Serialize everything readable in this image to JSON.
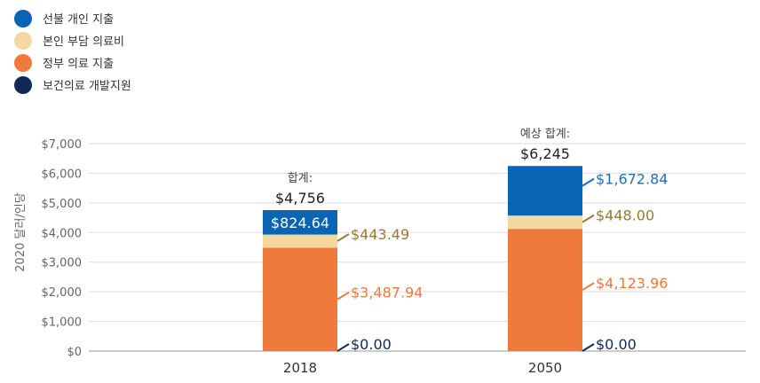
{
  "legend": [
    {
      "label": "선불 개인 지출",
      "color": "#0a64b4"
    },
    {
      "label": "본인 부담 의료비",
      "color": "#f4d8a2"
    },
    {
      "label": "정부 의료 지출",
      "color": "#f07a3c"
    },
    {
      "label": "보건의료 개발지원",
      "color": "#0f2a55"
    }
  ],
  "chart_data": {
    "type": "bar",
    "stacked": true,
    "ylabel": "2020 달러/인당",
    "ylim": [
      0,
      7000
    ],
    "yticks": [
      "$0",
      "$1,000",
      "$2,000",
      "$3,000",
      "$4,000",
      "$5,000",
      "$6,000",
      "$7,000"
    ],
    "categories": [
      "2018",
      "2050"
    ],
    "grid": true,
    "series": [
      {
        "name": "보건의료 개발지원",
        "color": "#0f2a55",
        "label_color": "#0f2a55",
        "values": [
          0.0,
          0.0
        ],
        "labels": [
          "$0.00",
          "$0.00"
        ]
      },
      {
        "name": "정부 의료 지출",
        "color": "#f07a3c",
        "label_color": "#f07a3c",
        "values": [
          3487.94,
          4123.96
        ],
        "labels": [
          "$3,487.94",
          "$4,123.96"
        ]
      },
      {
        "name": "본인 부담 의료비",
        "color": "#f4d8a2",
        "label_color": "#9a7a2e",
        "values": [
          443.49,
          448.0
        ],
        "labels": [
          "$443.49",
          "$448.00"
        ]
      },
      {
        "name": "선불 개인 지출",
        "color": "#0a64b4",
        "label_color": "#1f6fb8",
        "values": [
          824.64,
          1672.84
        ],
        "labels": [
          "$824.64",
          "$1,672.84"
        ]
      }
    ],
    "totals": [
      {
        "caption": "합계:",
        "value": "$4,756"
      },
      {
        "caption": "예상 합계:",
        "value": "$6,245"
      }
    ]
  }
}
